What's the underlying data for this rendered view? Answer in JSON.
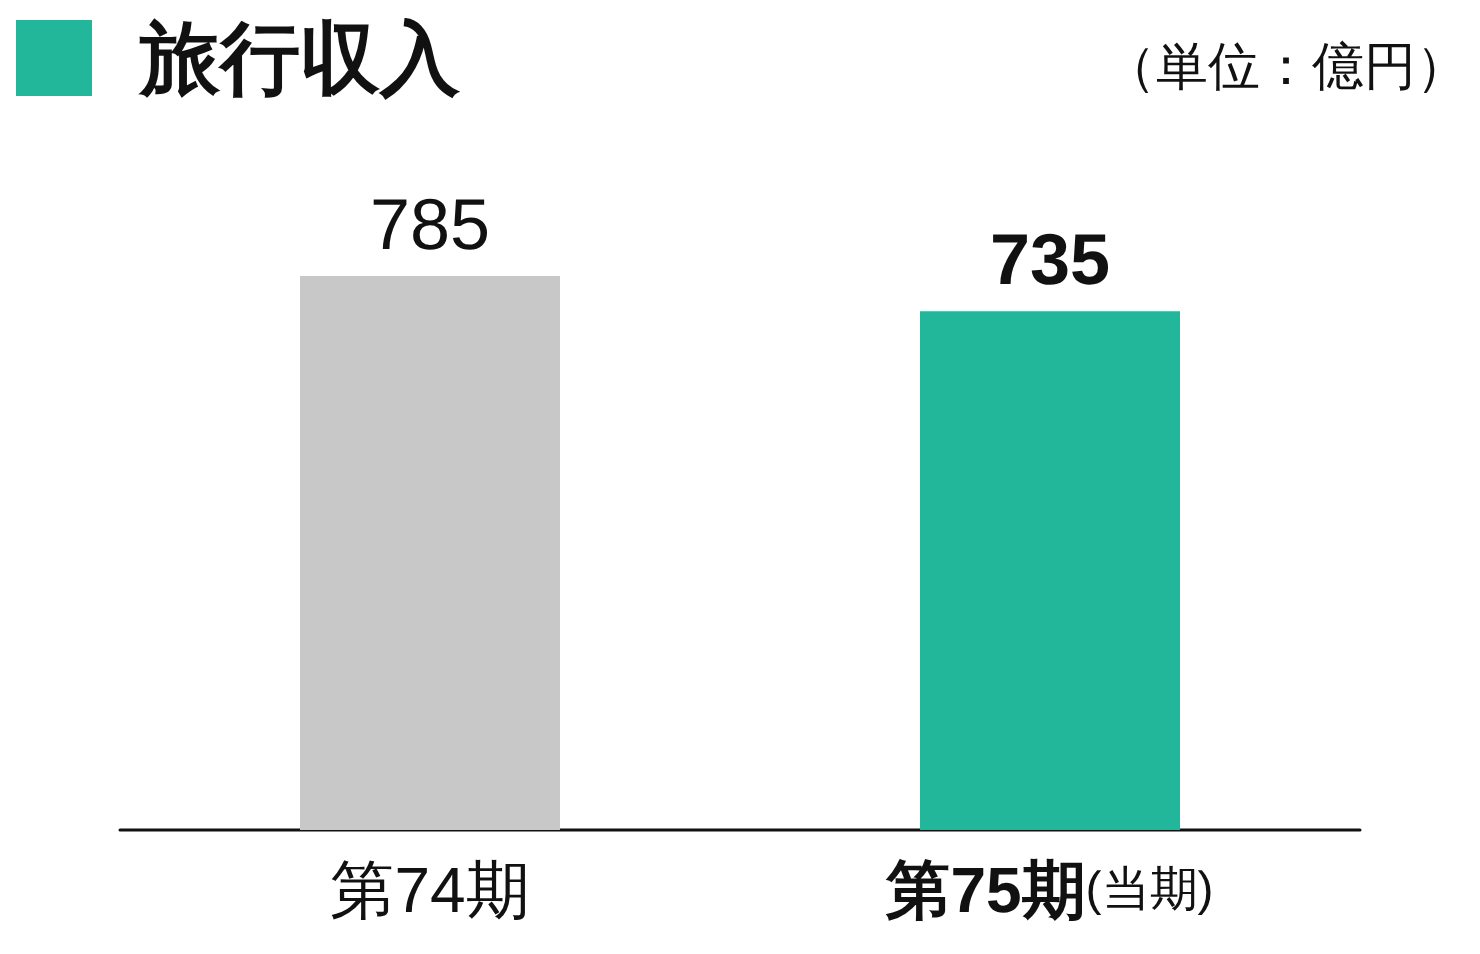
{
  "chart_data": {
    "type": "bar",
    "title": "旅行収入",
    "subtitle": "（単位：億円）",
    "categories": [
      "第74期",
      "第75期(当期)"
    ],
    "values": [
      785,
      735
    ],
    "colors": [
      "#c8c8c8",
      "#22b69a"
    ],
    "data_labels": true
  }
}
